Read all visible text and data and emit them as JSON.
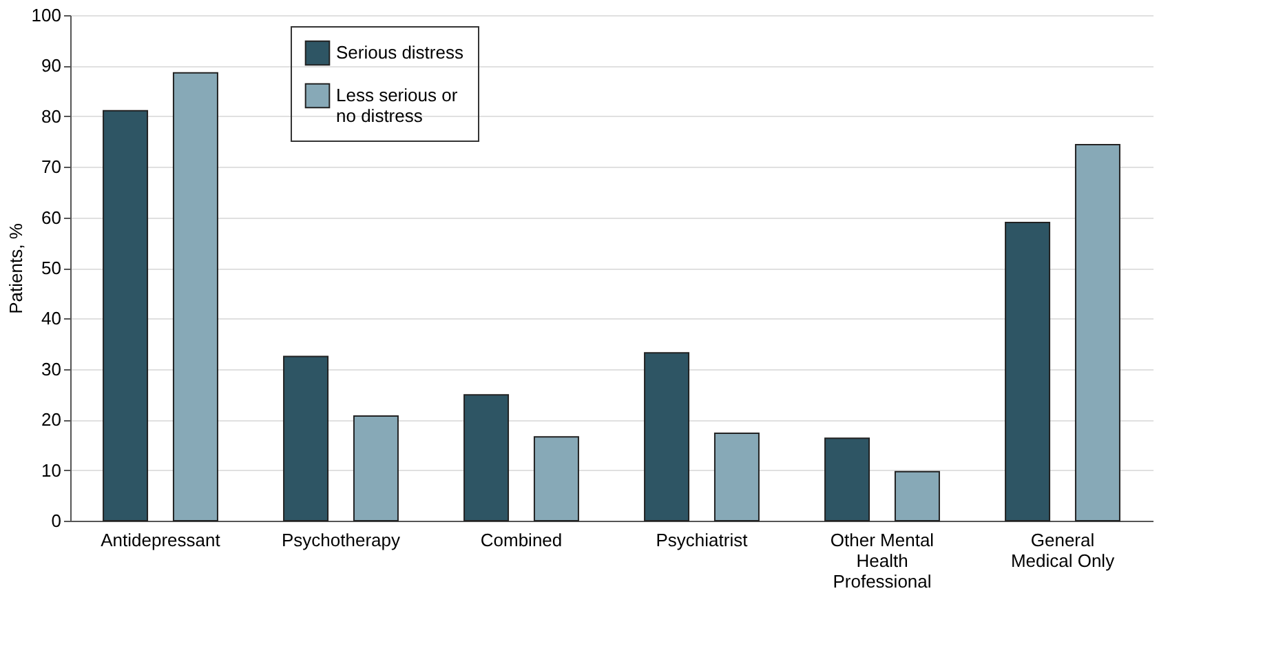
{
  "chart_data": {
    "type": "bar",
    "ylabel": "Patients, %",
    "categories": [
      "Antidepressant",
      "Psychotherapy",
      "Combined",
      "Psychiatrist",
      "Other Mental Health Professional",
      "General Medical Only"
    ],
    "series": [
      {
        "name": "Serious distress",
        "color": "#2e5564",
        "values": [
          81.1,
          32.5,
          24.9,
          33.2,
          16.3,
          59.0
        ]
      },
      {
        "name": "Less serious or no distress",
        "color": "#87a9b7",
        "values": [
          88.6,
          20.7,
          16.6,
          17.3,
          9.7,
          74.4
        ]
      }
    ],
    "ylim": [
      0,
      100
    ],
    "yticks": [
      0,
      10,
      20,
      30,
      40,
      50,
      60,
      70,
      80,
      90,
      100
    ],
    "grid": "y",
    "legend": "top left"
  }
}
